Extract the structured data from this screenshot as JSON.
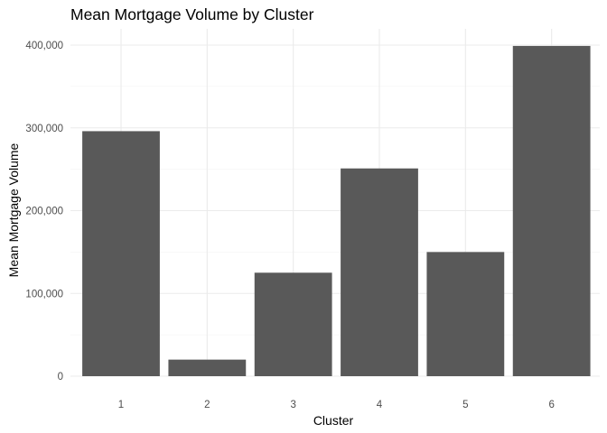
{
  "chart_data": {
    "type": "bar",
    "title": "Mean Mortgage Volume by Cluster",
    "xlabel": "Cluster",
    "ylabel": "Mean Mortgage Volume",
    "categories": [
      "1",
      "2",
      "3",
      "4",
      "5",
      "6"
    ],
    "values": [
      296000,
      20000,
      125000,
      251000,
      150000,
      399000
    ],
    "ylim": [
      0,
      400000
    ],
    "yticks": [
      0,
      100000,
      200000,
      300000,
      400000
    ],
    "ytick_labels": [
      "0",
      "100,000",
      "200,000",
      "300,000",
      "400,000"
    ],
    "grid": true,
    "legend": "none",
    "bar_color": "#595959",
    "grid_color": "#ebebeb"
  }
}
